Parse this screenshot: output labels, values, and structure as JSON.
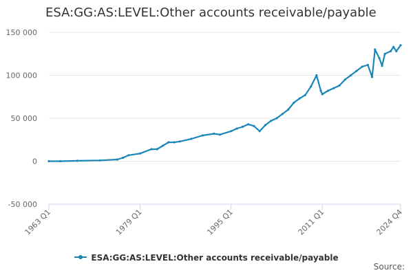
{
  "title": "ESA:GG:AS:LEVEL:Other accounts receivable/payable",
  "source_label": "Source:",
  "colors": {
    "series": "#1a86b8",
    "grid": "#e6e6e6",
    "axis": "#ccd6eb"
  },
  "chart_data": {
    "type": "line",
    "series": [
      {
        "name": "ESA:GG:AS:LEVEL:Other accounts receivable/payable",
        "points": [
          [
            "1963 Q1",
            0
          ],
          [
            "1965 Q1",
            0
          ],
          [
            "1968 Q1",
            500
          ],
          [
            "1972 Q1",
            1000
          ],
          [
            "1975 Q1",
            2000
          ],
          [
            "1976 Q1",
            4000
          ],
          [
            "1977 Q1",
            7000
          ],
          [
            "1979 Q1",
            9000
          ],
          [
            "1981 Q1",
            14000
          ],
          [
            "1982 Q1",
            14000
          ],
          [
            "1983 Q1",
            18000
          ],
          [
            "1984 Q1",
            22000
          ],
          [
            "1985 Q1",
            22000
          ],
          [
            "1986 Q1",
            23000
          ],
          [
            "1988 Q1",
            26000
          ],
          [
            "1990 Q1",
            30000
          ],
          [
            "1992 Q1",
            32000
          ],
          [
            "1993 Q1",
            31000
          ],
          [
            "1995 Q1",
            35000
          ],
          [
            "1996 Q1",
            38000
          ],
          [
            "1997 Q1",
            40000
          ],
          [
            "1998 Q1",
            43000
          ],
          [
            "1999 Q1",
            41000
          ],
          [
            "2000 Q1",
            35000
          ],
          [
            "2001 Q1",
            42000
          ],
          [
            "2002 Q1",
            47000
          ],
          [
            "2003 Q1",
            50000
          ],
          [
            "2004 Q1",
            55000
          ],
          [
            "2005 Q1",
            60000
          ],
          [
            "2006 Q1",
            68000
          ],
          [
            "2007 Q1",
            73000
          ],
          [
            "2008 Q1",
            77000
          ],
          [
            "2009 Q1",
            87000
          ],
          [
            "2010 Q1",
            100000
          ],
          [
            "2010 Q4",
            82000
          ],
          [
            "2011 Q1",
            78000
          ],
          [
            "2012 Q1",
            82000
          ],
          [
            "2013 Q1",
            85000
          ],
          [
            "2014 Q1",
            88000
          ],
          [
            "2015 Q1",
            95000
          ],
          [
            "2016 Q1",
            100000
          ],
          [
            "2017 Q1",
            105000
          ],
          [
            "2018 Q1",
            110000
          ],
          [
            "2019 Q1",
            112000
          ],
          [
            "2019 Q4",
            98000
          ],
          [
            "2020 Q2",
            130000
          ],
          [
            "2021 Q1",
            120000
          ],
          [
            "2021 Q3",
            111000
          ],
          [
            "2022 Q1",
            125000
          ],
          [
            "2023 Q1",
            128000
          ],
          [
            "2023 Q3",
            133000
          ],
          [
            "2024 Q1",
            128000
          ],
          [
            "2024 Q4",
            135000
          ]
        ]
      }
    ],
    "x_tick_labels": [
      "1963 Q1",
      "1979 Q1",
      "1995 Q1",
      "2011 Q1",
      "2024 Q4"
    ],
    "y_tick_labels": [
      "150 000",
      "100 000",
      "50 000",
      "0",
      "-50 000"
    ],
    "y_ticks": [
      150000,
      100000,
      50000,
      0,
      -50000
    ],
    "ylim": [
      -50000,
      150000
    ],
    "xlim": [
      "1963 Q1",
      "2024 Q4"
    ],
    "grid": "horizontal",
    "legend": "bottom-center"
  }
}
